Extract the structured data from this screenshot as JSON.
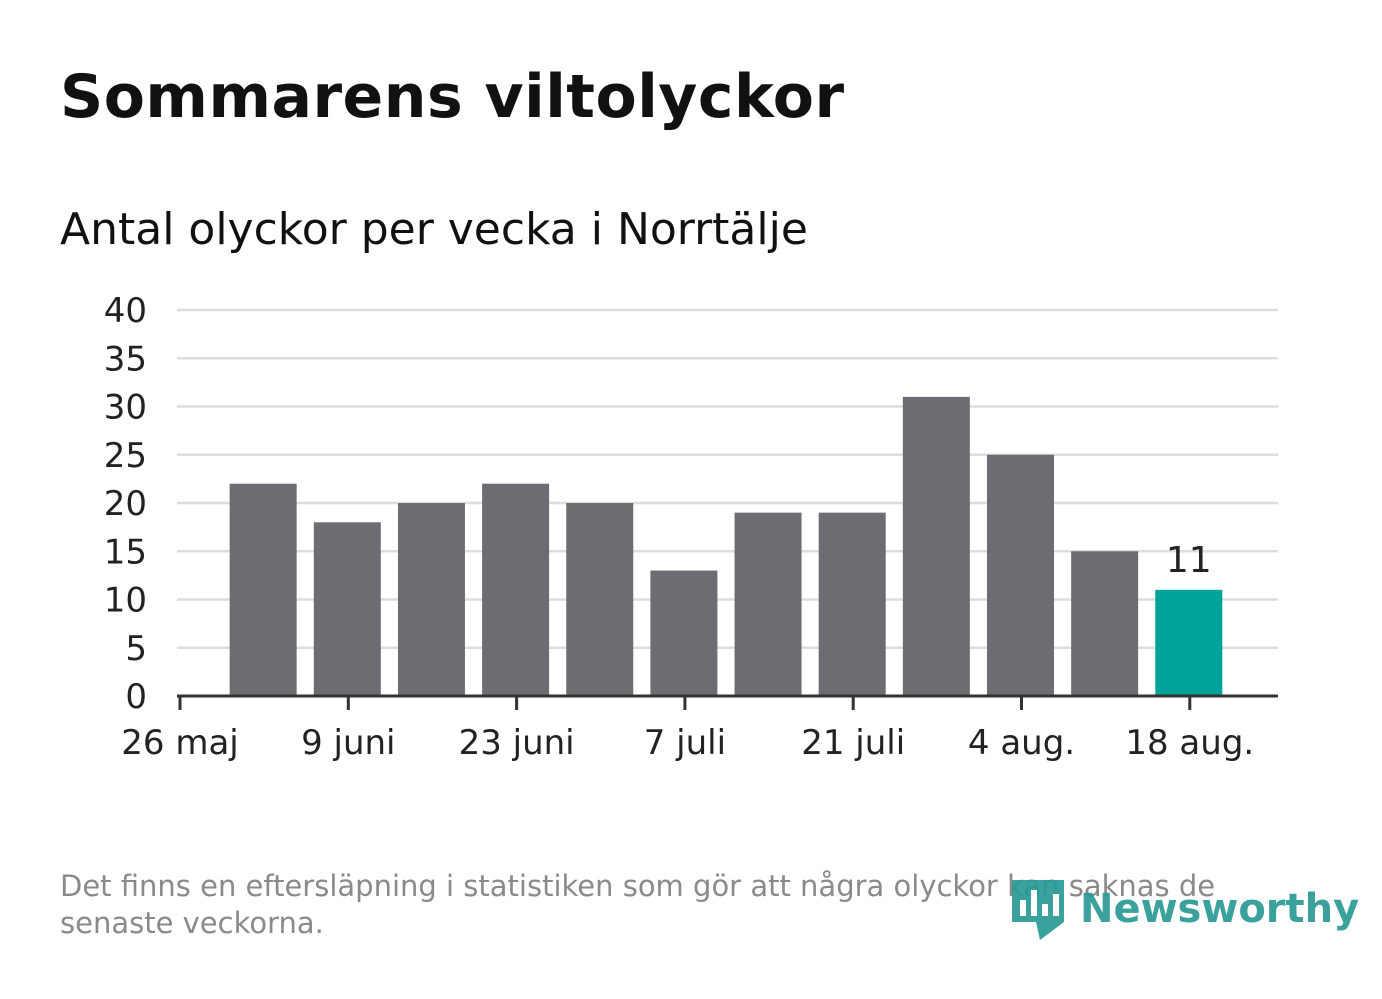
{
  "title": "Sommarens viltolyckor",
  "subtitle": "Antal olyckor per vecka i Norrtälje",
  "footnote": "Det finns en eftersläpning i statistiken som gör att några olyckor kan saknas de senaste veckorna.",
  "logo": {
    "text": "Newsworthy",
    "icon": "newsworthy-bar-chart-icon"
  },
  "colors": {
    "bar": "#6d6c72",
    "highlight": "#00a39a",
    "grid": "#dddddd",
    "axis": "#333333",
    "logo": "#2b9a94"
  },
  "chart_data": {
    "type": "bar",
    "title": "Sommarens viltolyckor",
    "subtitle": "Antal olyckor per vecka i Norrtälje",
    "x_ticks": [
      "26 maj",
      "9 juni",
      "23 juni",
      "7 juli",
      "21 juli",
      "4 aug.",
      "18 aug."
    ],
    "y_ticks": [
      "0",
      "5",
      "10",
      "15",
      "20",
      "25",
      "30",
      "35",
      "40"
    ],
    "ylim": [
      0,
      40
    ],
    "grid": true,
    "series": [
      {
        "values": [
          22,
          18,
          20,
          22,
          20,
          13,
          19,
          19,
          31,
          25,
          15,
          11
        ]
      }
    ],
    "highlight_index": 11,
    "data_labels": [
      {
        "index": 11,
        "text": "11"
      }
    ]
  }
}
